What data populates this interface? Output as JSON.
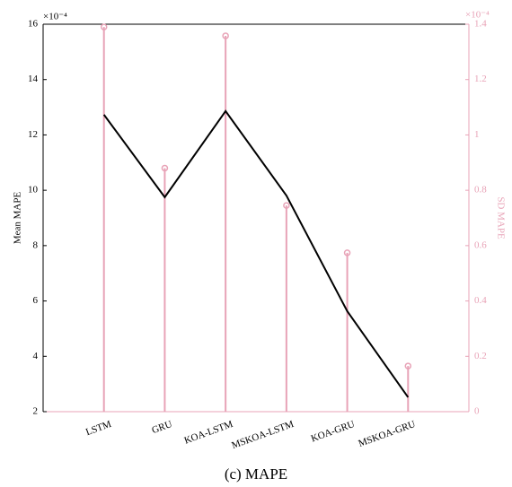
{
  "chart_data": {
    "type": "line-stem",
    "caption": "(c) MAPE",
    "ylabel": "Mean MAPE",
    "y2label": "SD MAPE",
    "y_multiplier": "×10⁻⁴",
    "y2_multiplier": "×10⁻⁴",
    "categories": [
      "LSTM",
      "GRU",
      "KOA-LSTM",
      "MSKOA-LSTM",
      "KOA-GRU",
      "MSKOA-GRU"
    ],
    "series": [
      {
        "values": [
          12.73,
          9.75,
          12.86,
          9.81,
          5.63,
          2.52
        ],
        "color": "#000000",
        "kind": "line"
      },
      {
        "values": [
          1.39,
          0.88,
          1.358,
          0.745,
          0.574,
          0.165
        ],
        "color": "#e8a3b7",
        "kind": "stem",
        "axis": "y2"
      }
    ],
    "ylim": [
      2,
      16
    ],
    "yticks": [
      2,
      4,
      6,
      8,
      10,
      12,
      14,
      16
    ],
    "y2lim": [
      0,
      1.4
    ],
    "y2ticks": [
      0,
      0.2,
      0.4,
      0.6,
      0.8,
      1,
      1.2,
      1.4
    ],
    "y2color": "#e8a3b7"
  }
}
